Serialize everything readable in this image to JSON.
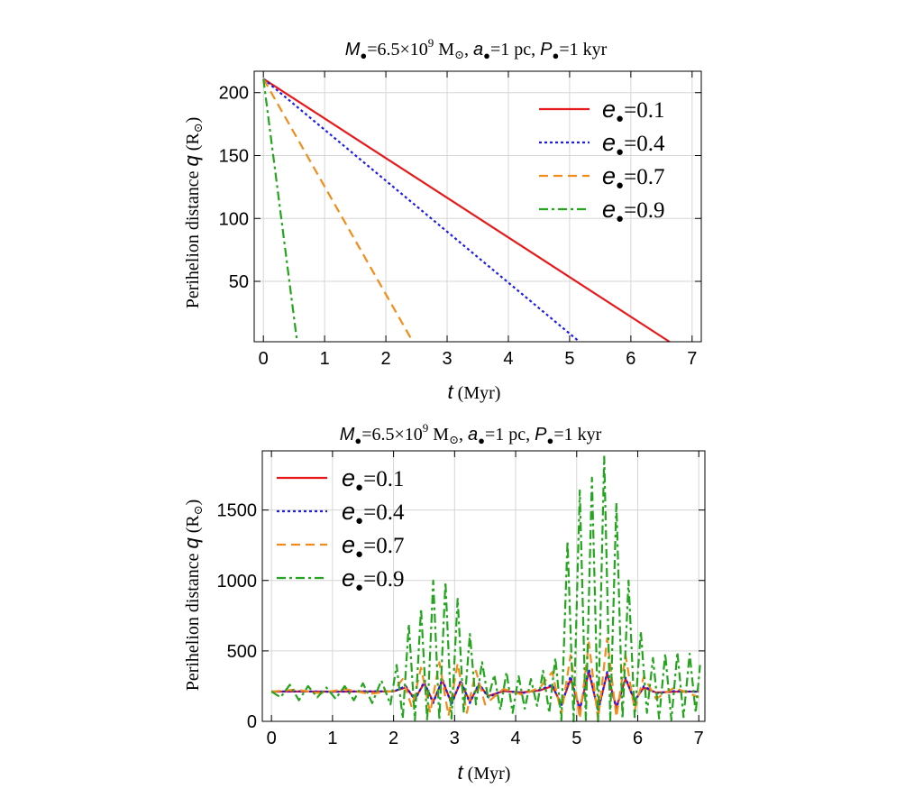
{
  "figure": {
    "charts_note": ""
  },
  "chart_data": [
    {
      "type": "line",
      "title": {
        "m_sym": "M",
        "m_val": "=6.5×10",
        "m_exp": "9",
        "m_unit": " M",
        "m_sun": "⊙",
        "a_sym": "a",
        "a_val": "=1 pc, ",
        "p_sym": "P",
        "p_val": "=1 kyr"
      },
      "xlabel": {
        "sym": "t",
        "unit": "  (Myr)"
      },
      "ylabel": {
        "text": "Perihelion  distance  ",
        "sym": "q",
        "unit": " (R",
        "sun": "⊙",
        "close": ")"
      },
      "xlim": [
        -0.15,
        7.15
      ],
      "ylim": [
        2,
        217
      ],
      "xticks": [
        0,
        1,
        2,
        3,
        4,
        5,
        6,
        7
      ],
      "yticks": [
        50,
        100,
        150,
        200
      ],
      "grid": true,
      "legend_position": "top-right",
      "series": [
        {
          "name": "e●=0.1",
          "sym": "e",
          "val": "=0.1",
          "color": "#e8191b",
          "dash": "",
          "x": [
            0,
            6.63
          ],
          "y": [
            211,
            2
          ]
        },
        {
          "name": "e●=0.4",
          "sym": "e",
          "val": "=0.4",
          "color": "#1d1de6",
          "dash": "3,3",
          "x": [
            0,
            5.16
          ],
          "y": [
            211,
            2
          ]
        },
        {
          "name": "e●=0.7",
          "sym": "e",
          "val": "=0.7",
          "color": "#f28c1a",
          "dash": "10,6",
          "x": [
            0,
            2.44
          ],
          "y": [
            211,
            2
          ]
        },
        {
          "name": "e●=0.9",
          "sym": "e",
          "val": "=0.9",
          "color": "#23a61d",
          "dash": "10,4,3,4",
          "x": [
            0,
            0.55
          ],
          "y": [
            211,
            2
          ]
        }
      ]
    },
    {
      "type": "line",
      "title": {
        "m_sym": "M",
        "m_val": "=6.5×10",
        "m_exp": "9",
        "m_unit": " M",
        "m_sun": "⊙",
        "a_sym": "a",
        "a_val": "=1 pc, ",
        "p_sym": "P",
        "p_val": "=1 kyr"
      },
      "xlabel": {
        "sym": "t",
        "unit": "  (Myr)"
      },
      "ylabel": {
        "text": "Perihelion  distance  ",
        "sym": "q",
        "unit": " (R",
        "sun": "⊙",
        "close": ")"
      },
      "xlim": [
        -0.15,
        7.1
      ],
      "ylim": [
        0,
        1920
      ],
      "xticks": [
        0,
        1,
        2,
        3,
        4,
        5,
        6,
        7
      ],
      "yticks": [
        0,
        500,
        1000,
        1500
      ],
      "grid": true,
      "legend_position": "top-left",
      "series": [
        {
          "name": "e●=0.1",
          "sym": "e",
          "val": "=0.1",
          "color": "#e8191b",
          "dash": "",
          "x": [
            0,
            0.5,
            1,
            1.5,
            2,
            2.2,
            2.35,
            2.5,
            2.65,
            2.8,
            2.95,
            3.1,
            3.25,
            3.4,
            3.55,
            3.8,
            4.1,
            4.4,
            4.6,
            4.75,
            4.9,
            5.05,
            5.2,
            5.35,
            5.5,
            5.65,
            5.8,
            5.95,
            6.1,
            6.3,
            6.6,
            7
          ],
          "y": [
            211,
            212,
            211,
            212,
            213,
            240,
            160,
            270,
            140,
            290,
            130,
            280,
            140,
            260,
            180,
            215,
            205,
            220,
            250,
            120,
            300,
            90,
            350,
            80,
            340,
            100,
            300,
            150,
            240,
            205,
            210,
            212
          ]
        },
        {
          "name": "e●=0.4",
          "sym": "e",
          "val": "=0.4",
          "color": "#1d1de6",
          "dash": "3,3",
          "x": [
            0,
            0.5,
            1,
            1.5,
            2,
            2.2,
            2.35,
            2.5,
            2.65,
            2.8,
            2.95,
            3.1,
            3.25,
            3.4,
            3.55,
            3.8,
            4.1,
            4.4,
            4.6,
            4.75,
            4.9,
            5.05,
            5.2,
            5.35,
            5.5,
            5.65,
            5.8,
            5.95,
            6.1,
            6.3,
            6.6,
            7
          ],
          "y": [
            211,
            213,
            210,
            214,
            212,
            250,
            150,
            280,
            130,
            300,
            120,
            290,
            130,
            270,
            170,
            220,
            200,
            225,
            260,
            110,
            320,
            80,
            370,
            70,
            350,
            90,
            310,
            140,
            250,
            200,
            215,
            210
          ]
        },
        {
          "name": "e●=0.7",
          "sym": "e",
          "val": "=0.7",
          "color": "#f28c1a",
          "dash": "10,6",
          "x": [
            0,
            0.4,
            0.8,
            1.2,
            1.6,
            2,
            2.15,
            2.3,
            2.45,
            2.6,
            2.75,
            2.9,
            3.05,
            3.2,
            3.35,
            3.5,
            3.8,
            4.1,
            4.4,
            4.6,
            4.75,
            4.9,
            5.05,
            5.2,
            5.35,
            5.5,
            5.65,
            5.8,
            5.95,
            6.1,
            6.3,
            6.6,
            7
          ],
          "y": [
            211,
            225,
            200,
            230,
            195,
            215,
            300,
            100,
            380,
            60,
            420,
            40,
            410,
            60,
            360,
            120,
            230,
            190,
            240,
            350,
            50,
            470,
            20,
            560,
            10,
            590,
            30,
            470,
            80,
            320,
            160,
            240,
            170
          ]
        },
        {
          "name": "e●=0.9",
          "sym": "e",
          "val": "=0.9",
          "color": "#23a61d",
          "dash": "10,4,3,4",
          "x": [
            0,
            0.15,
            0.3,
            0.45,
            0.6,
            0.75,
            0.9,
            1.05,
            1.2,
            1.35,
            1.5,
            1.65,
            1.8,
            1.95,
            2.05,
            2.15,
            2.25,
            2.35,
            2.45,
            2.55,
            2.65,
            2.75,
            2.85,
            2.95,
            3.05,
            3.15,
            3.25,
            3.35,
            3.45,
            3.55,
            3.65,
            3.75,
            3.85,
            3.95,
            4.05,
            4.15,
            4.25,
            4.35,
            4.45,
            4.55,
            4.65,
            4.75,
            4.85,
            4.95,
            5.05,
            5.15,
            5.25,
            5.35,
            5.45,
            5.55,
            5.65,
            5.75,
            5.85,
            5.95,
            6.05,
            6.15,
            6.25,
            6.35,
            6.45,
            6.55,
            6.65,
            6.75,
            6.85,
            6.95,
            7.02
          ],
          "y": [
            211,
            170,
            260,
            150,
            250,
            170,
            240,
            160,
            250,
            150,
            270,
            130,
            290,
            120,
            400,
            20,
            690,
            10,
            800,
            5,
            1000,
            10,
            990,
            20,
            870,
            60,
            620,
            120,
            420,
            160,
            330,
            80,
            350,
            60,
            320,
            90,
            300,
            110,
            360,
            60,
            450,
            10,
            1280,
            0,
            1640,
            10,
            1730,
            0,
            1880,
            10,
            1550,
            20,
            1000,
            30,
            640,
            60,
            450,
            20,
            480,
            10,
            490,
            30,
            480,
            60,
            400
          ]
        }
      ]
    }
  ]
}
